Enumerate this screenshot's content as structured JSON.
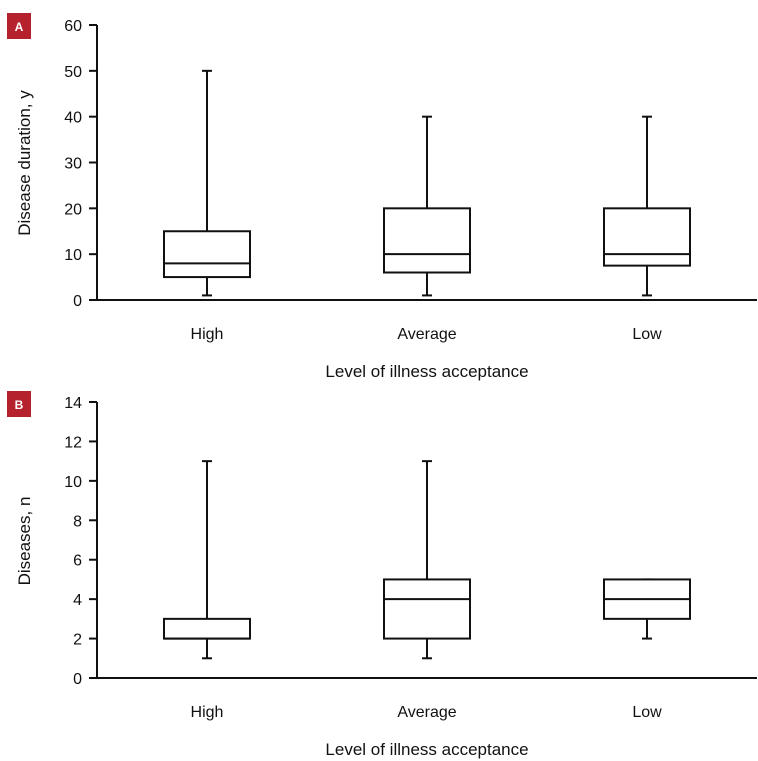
{
  "chart_data": [
    {
      "type": "box",
      "panel_label": "A",
      "xlabel": "Level of illness acceptance",
      "ylabel": "Disease duration, y",
      "ylim": [
        0,
        60
      ],
      "yticks": [
        0,
        10,
        20,
        30,
        40,
        50,
        60
      ],
      "categories": [
        "High",
        "Average",
        "Low"
      ],
      "boxes": [
        {
          "category": "High",
          "min": 1,
          "q1": 5,
          "median": 8,
          "q3": 15,
          "max": 50
        },
        {
          "category": "Average",
          "min": 1,
          "q1": 6,
          "median": 10,
          "q3": 20,
          "max": 40
        },
        {
          "category": "Low",
          "min": 1,
          "q1": 7.5,
          "median": 10,
          "q3": 20,
          "max": 40
        }
      ],
      "grid": false
    },
    {
      "type": "box",
      "panel_label": "B",
      "xlabel": "Level of illness acceptance",
      "ylabel": "Diseases, n",
      "ylim": [
        0,
        14
      ],
      "yticks": [
        0,
        2,
        4,
        6,
        8,
        10,
        12,
        14
      ],
      "categories": [
        "High",
        "Average",
        "Low"
      ],
      "boxes": [
        {
          "category": "High",
          "min": 1,
          "q1": 2,
          "median": 2,
          "q3": 3,
          "max": 11
        },
        {
          "category": "Average",
          "min": 1,
          "q1": 2,
          "median": 4,
          "q3": 5,
          "max": 11
        },
        {
          "category": "Low",
          "min": 2,
          "q1": 3,
          "median": 4,
          "q3": 5,
          "max": 5
        }
      ],
      "grid": false
    }
  ],
  "colors": {
    "panel_label_bg": "#b5212c",
    "line": "#111111",
    "box_fill": "#ffffff"
  }
}
